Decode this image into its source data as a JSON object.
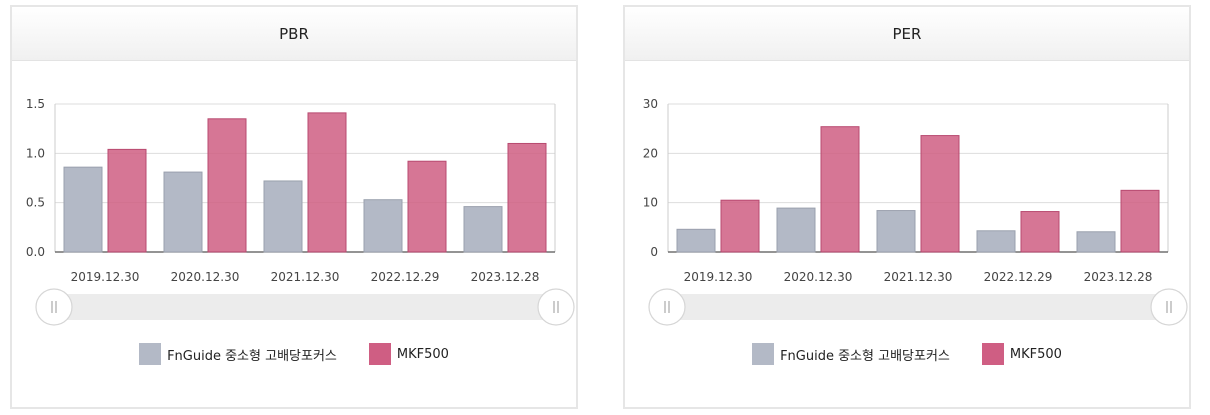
{
  "colors": {
    "series_a": "#b3b9c6",
    "series_b": "#cf5e83"
  },
  "chart_data": [
    {
      "type": "bar",
      "title": "PBR",
      "categories": [
        "2019.12.30",
        "2020.12.30",
        "2021.12.30",
        "2022.12.29",
        "2023.12.28"
      ],
      "ylim": [
        0,
        1.5
      ],
      "yticks": [
        "0.0",
        "0.5",
        "1.0",
        "1.5"
      ],
      "ytick_values": [
        0,
        0.5,
        1.0,
        1.5
      ],
      "grid": true,
      "legend_position": "bottom",
      "series": [
        {
          "name": "FnGuide 중소형 고배당포커스",
          "values": [
            0.86,
            0.81,
            0.72,
            0.53,
            0.46
          ]
        },
        {
          "name": "MKF500",
          "values": [
            1.04,
            1.35,
            1.41,
            0.92,
            1.1
          ]
        }
      ]
    },
    {
      "type": "bar",
      "title": "PER",
      "categories": [
        "2019.12.30",
        "2020.12.30",
        "2021.12.30",
        "2022.12.29",
        "2023.12.28"
      ],
      "ylim": [
        0,
        30
      ],
      "yticks": [
        "0",
        "10",
        "20",
        "30"
      ],
      "ytick_values": [
        0,
        10,
        20,
        30
      ],
      "grid": true,
      "legend_position": "bottom",
      "series": [
        {
          "name": "FnGuide 중소형 고배당포커스",
          "values": [
            4.6,
            8.9,
            8.4,
            4.3,
            4.1
          ]
        },
        {
          "name": "MKF500",
          "values": [
            10.5,
            25.4,
            23.6,
            8.2,
            12.5
          ]
        }
      ]
    }
  ]
}
